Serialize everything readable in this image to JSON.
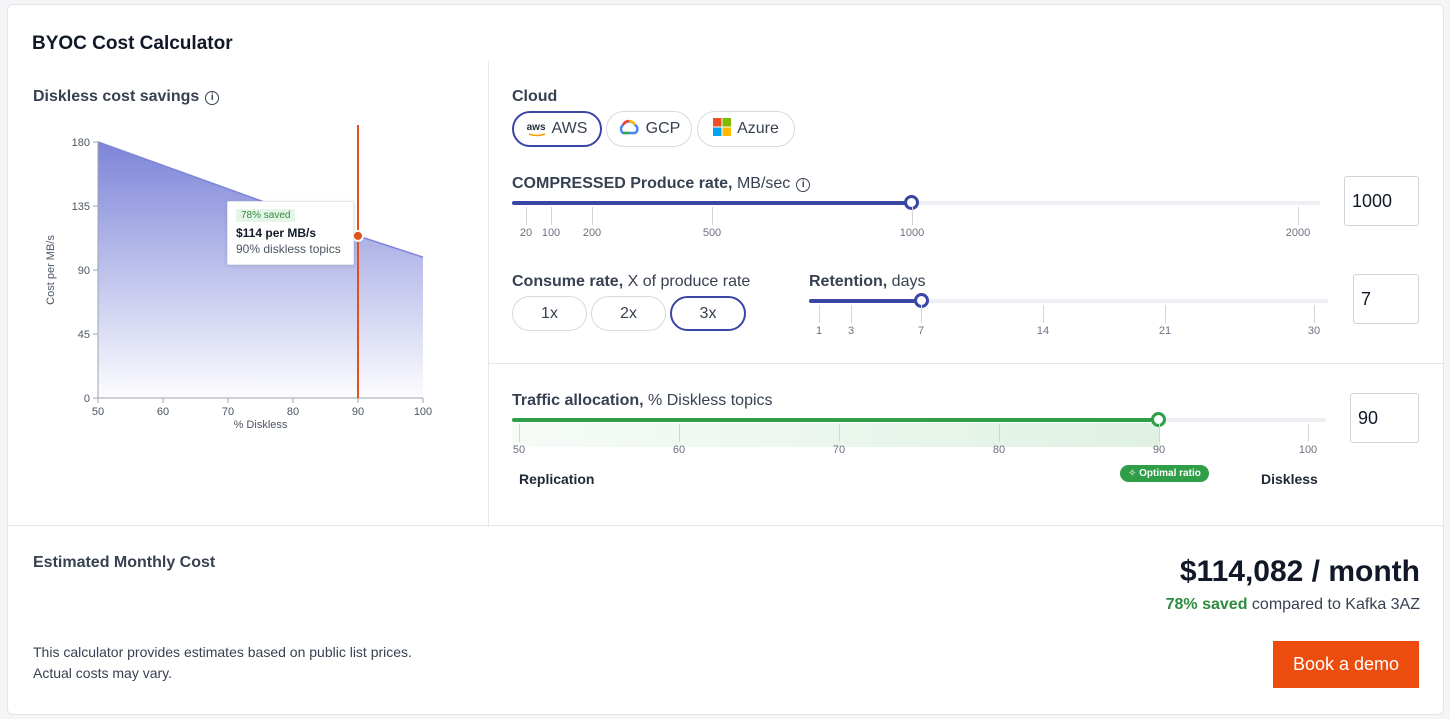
{
  "header": {
    "title": "BYOC Cost Calculator"
  },
  "chart": {
    "title": "Diskless cost savings",
    "tooltip": {
      "saved": "78% saved",
      "per": "$114 per MB/s",
      "pct": "90% diskless topics"
    }
  },
  "chart_data": {
    "type": "area",
    "title": "Diskless cost savings",
    "xlabel": "% Diskless",
    "ylabel": "Cost per MB/s",
    "x": [
      50,
      90,
      100
    ],
    "y": [
      180,
      114,
      99
    ],
    "xlim": [
      50,
      100
    ],
    "ylim": [
      0,
      180
    ],
    "xticks": [
      50,
      60,
      70,
      80,
      90,
      100
    ],
    "yticks": [
      0,
      45,
      90,
      135,
      180
    ],
    "marker": {
      "x": 90,
      "y": 114
    },
    "colors": {
      "area": "#7d85d8",
      "marker": "#e0521a"
    }
  },
  "cloud": {
    "label": "Cloud",
    "options": [
      {
        "label": "AWS",
        "icon": "aws-logo-icon",
        "selected": true
      },
      {
        "label": "GCP",
        "icon": "gcp-logo-icon",
        "selected": false
      },
      {
        "label": "Azure",
        "icon": "azure-logo-icon",
        "selected": false
      }
    ]
  },
  "produce": {
    "label_bold": "COMPRESSED Produce rate,",
    "label_unit": " MB/sec",
    "value": "1000",
    "ticks": [
      "20",
      "100",
      "200",
      "500",
      "1000",
      "2000"
    ]
  },
  "consume": {
    "label_bold": "Consume rate,",
    "label_unit": " X of produce rate",
    "options": [
      "1x",
      "2x",
      "3x"
    ],
    "selected": "3x"
  },
  "retention": {
    "label_bold": "Retention,",
    "label_unit": " days",
    "value": "7",
    "ticks": [
      "1",
      "3",
      "7",
      "14",
      "21",
      "30"
    ]
  },
  "traffic": {
    "label_bold": "Traffic allocation,",
    "label_unit": " % Diskless topics",
    "value": "90",
    "ticks": [
      "50",
      "60",
      "70",
      "80",
      "90",
      "100"
    ],
    "left_label": "Replication",
    "right_label": "Diskless",
    "optimal_badge": "✧ Optimal ratio"
  },
  "summary": {
    "label": "Estimated Monthly Cost",
    "cost": "$114,082 / month",
    "saved_pct": "78% saved",
    "compare": " compared to Kafka 3AZ",
    "disclaimer_1": "This calculator provides estimates based on public list prices.",
    "disclaimer_2": "Actual costs may vary.",
    "cta": "Book a demo"
  },
  "colors": {
    "accent": "#3b45a6",
    "green": "#2e9e47",
    "orange": "#ec4d0f"
  }
}
